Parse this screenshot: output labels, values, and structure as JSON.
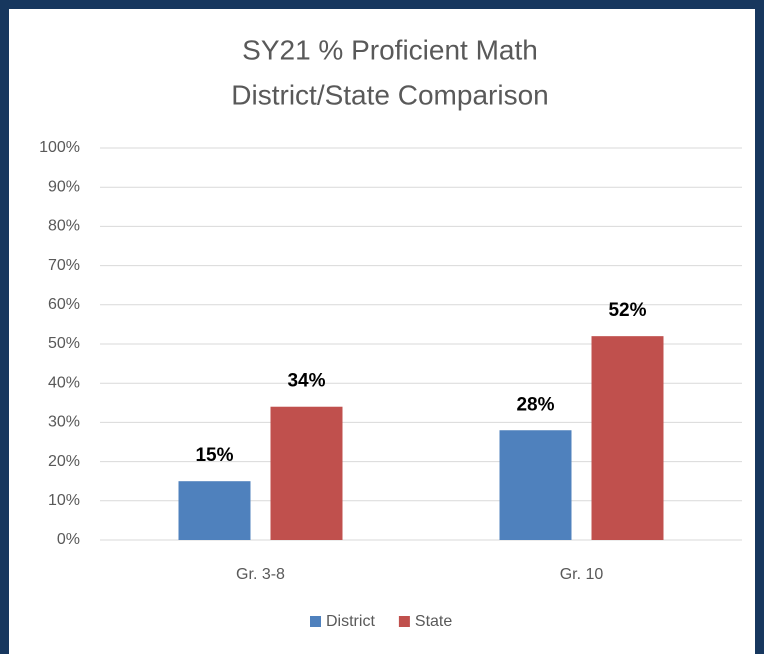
{
  "chart_data": {
    "type": "bar",
    "title": [
      "SY21 % Proficient Math",
      "District/State Comparison"
    ],
    "categories": [
      "Gr. 3-8",
      "Gr. 10"
    ],
    "series": [
      {
        "name": "District",
        "color": "#4f81bd",
        "values": [
          15,
          28
        ],
        "value_labels": [
          "15%",
          "28%"
        ]
      },
      {
        "name": "State",
        "color": "#c0504d",
        "values": [
          34,
          52
        ],
        "value_labels": [
          "34%",
          "52%"
        ]
      }
    ],
    "ylim": [
      0,
      100
    ],
    "yticks": [
      {
        "value": 0,
        "label": "0%"
      },
      {
        "value": 10,
        "label": "10%"
      },
      {
        "value": 20,
        "label": "20%"
      },
      {
        "value": 30,
        "label": "30%"
      },
      {
        "value": 40,
        "label": "40%"
      },
      {
        "value": 50,
        "label": "50%"
      },
      {
        "value": 60,
        "label": "60%"
      },
      {
        "value": 70,
        "label": "70%"
      },
      {
        "value": 80,
        "label": "80%"
      },
      {
        "value": 90,
        "label": "90%"
      },
      {
        "value": 100,
        "label": "100%"
      }
    ],
    "grid": true,
    "legend": "bottom"
  }
}
